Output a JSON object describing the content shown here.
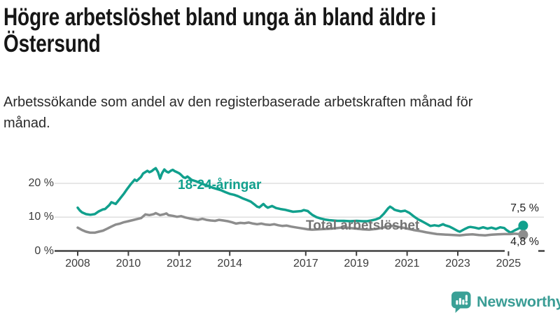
{
  "chart_data": {
    "type": "line",
    "title": "Högre arbetslöshet bland unga än bland äldre i Östersund",
    "subtitle": "Arbetssökande som andel av den registerbaserade arbetskraften månad för månad.",
    "unit": "%",
    "grid": "horizontal",
    "legend_position": "inline-labels-on-lines",
    "x_range": [
      2008,
      2025.6
    ],
    "y_range": [
      0,
      26
    ],
    "x_ticks": [
      2008,
      2010,
      2012,
      2014,
      2017,
      2019,
      2021,
      2023,
      2025
    ],
    "y_ticks": [
      {
        "value": 0,
        "label": "0 %"
      },
      {
        "value": 10,
        "label": "10 %"
      },
      {
        "value": 20,
        "label": "20 %"
      }
    ],
    "series": [
      {
        "name": "18-24-åringar",
        "color": "#11a08d",
        "end_value_label": "7,5 %",
        "points": [
          [
            2008.0,
            12.8
          ],
          [
            2008.08,
            12.0
          ],
          [
            2008.17,
            11.4
          ],
          [
            2008.33,
            10.9
          ],
          [
            2008.5,
            10.7
          ],
          [
            2008.67,
            10.9
          ],
          [
            2008.83,
            11.7
          ],
          [
            2009.0,
            12.3
          ],
          [
            2009.08,
            12.4
          ],
          [
            2009.25,
            13.6
          ],
          [
            2009.33,
            14.4
          ],
          [
            2009.5,
            13.9
          ],
          [
            2009.67,
            15.5
          ],
          [
            2009.83,
            17.0
          ],
          [
            2009.92,
            18.0
          ],
          [
            2010.08,
            19.6
          ],
          [
            2010.25,
            21.1
          ],
          [
            2010.33,
            20.7
          ],
          [
            2010.5,
            21.9
          ],
          [
            2010.58,
            22.9
          ],
          [
            2010.75,
            23.7
          ],
          [
            2010.83,
            23.3
          ],
          [
            2010.92,
            23.6
          ],
          [
            2011.0,
            24.1
          ],
          [
            2011.08,
            24.5
          ],
          [
            2011.17,
            23.3
          ],
          [
            2011.25,
            21.4
          ],
          [
            2011.33,
            23.0
          ],
          [
            2011.42,
            24.1
          ],
          [
            2011.5,
            23.5
          ],
          [
            2011.58,
            23.2
          ],
          [
            2011.67,
            23.7
          ],
          [
            2011.75,
            24.0
          ],
          [
            2011.83,
            23.6
          ],
          [
            2011.92,
            23.3
          ],
          [
            2012.0,
            23.0
          ],
          [
            2012.08,
            22.5
          ],
          [
            2012.17,
            21.8
          ],
          [
            2012.25,
            21.6
          ],
          [
            2012.33,
            22.0
          ],
          [
            2012.42,
            21.5
          ],
          [
            2012.5,
            21.0
          ],
          [
            2012.67,
            20.6
          ],
          [
            2012.83,
            20.1
          ],
          [
            2013.0,
            19.6
          ],
          [
            2013.17,
            19.2
          ],
          [
            2013.33,
            18.7
          ],
          [
            2013.5,
            18.3
          ],
          [
            2013.67,
            17.9
          ],
          [
            2013.83,
            17.4
          ],
          [
            2014.0,
            16.9
          ],
          [
            2014.17,
            16.6
          ],
          [
            2014.33,
            16.2
          ],
          [
            2014.5,
            15.6
          ],
          [
            2014.67,
            15.1
          ],
          [
            2014.83,
            14.6
          ],
          [
            2015.0,
            13.6
          ],
          [
            2015.08,
            13.1
          ],
          [
            2015.17,
            12.9
          ],
          [
            2015.33,
            13.9
          ],
          [
            2015.42,
            13.2
          ],
          [
            2015.5,
            12.8
          ],
          [
            2015.67,
            13.3
          ],
          [
            2015.83,
            12.7
          ],
          [
            2016.0,
            12.4
          ],
          [
            2016.17,
            12.2
          ],
          [
            2016.33,
            11.9
          ],
          [
            2016.5,
            11.6
          ],
          [
            2016.67,
            11.7
          ],
          [
            2016.83,
            11.8
          ],
          [
            2016.92,
            12.1
          ],
          [
            2017.08,
            11.8
          ],
          [
            2017.17,
            11.2
          ],
          [
            2017.25,
            10.7
          ],
          [
            2017.42,
            10.0
          ],
          [
            2017.58,
            9.6
          ],
          [
            2017.75,
            9.3
          ],
          [
            2017.92,
            9.1
          ],
          [
            2018.08,
            9.0
          ],
          [
            2018.25,
            8.9
          ],
          [
            2018.5,
            8.9
          ],
          [
            2018.75,
            8.8
          ],
          [
            2019.0,
            8.9
          ],
          [
            2019.25,
            8.8
          ],
          [
            2019.42,
            8.8
          ],
          [
            2019.58,
            9.0
          ],
          [
            2019.75,
            9.3
          ],
          [
            2019.92,
            9.8
          ],
          [
            2020.08,
            11.0
          ],
          [
            2020.25,
            12.6
          ],
          [
            2020.33,
            13.1
          ],
          [
            2020.42,
            12.7
          ],
          [
            2020.5,
            12.2
          ],
          [
            2020.58,
            12.0
          ],
          [
            2020.75,
            11.7
          ],
          [
            2020.92,
            11.9
          ],
          [
            2021.0,
            11.6
          ],
          [
            2021.08,
            11.3
          ],
          [
            2021.25,
            10.3
          ],
          [
            2021.42,
            9.4
          ],
          [
            2021.58,
            8.8
          ],
          [
            2021.75,
            8.1
          ],
          [
            2021.92,
            7.4
          ],
          [
            2022.08,
            7.6
          ],
          [
            2022.25,
            7.4
          ],
          [
            2022.42,
            7.9
          ],
          [
            2022.5,
            7.6
          ],
          [
            2022.67,
            7.2
          ],
          [
            2022.83,
            6.6
          ],
          [
            2023.0,
            5.9
          ],
          [
            2023.08,
            5.7
          ],
          [
            2023.25,
            6.4
          ],
          [
            2023.42,
            7.0
          ],
          [
            2023.5,
            7.1
          ],
          [
            2023.67,
            6.9
          ],
          [
            2023.83,
            6.6
          ],
          [
            2024.0,
            7.0
          ],
          [
            2024.17,
            6.6
          ],
          [
            2024.33,
            6.9
          ],
          [
            2024.5,
            6.5
          ],
          [
            2024.67,
            7.0
          ],
          [
            2024.83,
            6.8
          ],
          [
            2024.92,
            6.2
          ],
          [
            2025.08,
            5.4
          ],
          [
            2025.25,
            6.1
          ],
          [
            2025.42,
            6.7
          ],
          [
            2025.58,
            7.5
          ]
        ]
      },
      {
        "name": "Total arbetslöshet",
        "color": "#8d8d8d",
        "end_value_label": "4,8 %",
        "points": [
          [
            2008.0,
            6.9
          ],
          [
            2008.17,
            6.2
          ],
          [
            2008.33,
            5.7
          ],
          [
            2008.5,
            5.4
          ],
          [
            2008.67,
            5.4
          ],
          [
            2008.83,
            5.7
          ],
          [
            2009.0,
            6.0
          ],
          [
            2009.17,
            6.6
          ],
          [
            2009.33,
            7.2
          ],
          [
            2009.5,
            7.8
          ],
          [
            2009.67,
            8.1
          ],
          [
            2009.83,
            8.5
          ],
          [
            2010.0,
            8.8
          ],
          [
            2010.17,
            9.1
          ],
          [
            2010.33,
            9.4
          ],
          [
            2010.5,
            9.7
          ],
          [
            2010.58,
            10.2
          ],
          [
            2010.67,
            10.8
          ],
          [
            2010.83,
            10.6
          ],
          [
            2011.0,
            10.9
          ],
          [
            2011.08,
            11.2
          ],
          [
            2011.25,
            10.6
          ],
          [
            2011.42,
            10.9
          ],
          [
            2011.5,
            11.1
          ],
          [
            2011.58,
            10.6
          ],
          [
            2011.75,
            10.4
          ],
          [
            2011.92,
            10.1
          ],
          [
            2012.08,
            10.3
          ],
          [
            2012.25,
            9.9
          ],
          [
            2012.42,
            9.6
          ],
          [
            2012.58,
            9.4
          ],
          [
            2012.75,
            9.2
          ],
          [
            2012.92,
            9.5
          ],
          [
            2013.08,
            9.2
          ],
          [
            2013.25,
            9.0
          ],
          [
            2013.42,
            8.9
          ],
          [
            2013.58,
            9.2
          ],
          [
            2013.75,
            9.0
          ],
          [
            2013.92,
            8.8
          ],
          [
            2014.08,
            8.5
          ],
          [
            2014.25,
            8.1
          ],
          [
            2014.42,
            8.3
          ],
          [
            2014.58,
            8.2
          ],
          [
            2014.75,
            8.4
          ],
          [
            2014.92,
            8.1
          ],
          [
            2015.08,
            7.9
          ],
          [
            2015.25,
            8.1
          ],
          [
            2015.42,
            7.8
          ],
          [
            2015.58,
            7.7
          ],
          [
            2015.75,
            7.9
          ],
          [
            2015.92,
            7.6
          ],
          [
            2016.08,
            7.4
          ],
          [
            2016.25,
            7.5
          ],
          [
            2016.42,
            7.2
          ],
          [
            2016.58,
            7.0
          ],
          [
            2016.75,
            6.8
          ],
          [
            2016.92,
            6.6
          ],
          [
            2017.08,
            6.4
          ],
          [
            2017.25,
            6.3
          ],
          [
            2017.5,
            6.4
          ],
          [
            2017.75,
            6.5
          ],
          [
            2018.0,
            6.6
          ],
          [
            2018.25,
            6.8
          ],
          [
            2018.5,
            7.0
          ],
          [
            2018.75,
            6.8
          ],
          [
            2019.0,
            6.6
          ],
          [
            2019.25,
            6.4
          ],
          [
            2019.5,
            6.3
          ],
          [
            2019.75,
            6.5
          ],
          [
            2020.0,
            6.8
          ],
          [
            2020.25,
            7.3
          ],
          [
            2020.42,
            7.4
          ],
          [
            2020.58,
            7.2
          ],
          [
            2020.83,
            6.9
          ],
          [
            2021.0,
            6.6
          ],
          [
            2021.25,
            6.2
          ],
          [
            2021.5,
            5.9
          ],
          [
            2021.75,
            5.5
          ],
          [
            2022.0,
            5.2
          ],
          [
            2022.17,
            5.0
          ],
          [
            2022.33,
            4.9
          ],
          [
            2022.58,
            4.8
          ],
          [
            2022.83,
            4.7
          ],
          [
            2023.08,
            4.6
          ],
          [
            2023.33,
            4.8
          ],
          [
            2023.58,
            4.9
          ],
          [
            2023.83,
            4.7
          ],
          [
            2024.08,
            4.6
          ],
          [
            2024.33,
            4.8
          ],
          [
            2024.58,
            4.9
          ],
          [
            2024.83,
            5.0
          ],
          [
            2025.08,
            5.0
          ],
          [
            2025.25,
            5.1
          ],
          [
            2025.42,
            5.0
          ],
          [
            2025.58,
            4.8
          ]
        ]
      }
    ],
    "colors": {
      "grid": "#dcdcdc",
      "axis": "#404040",
      "tick_label": "#3c3c3c",
      "end_label_text": "#1f1f1f"
    }
  },
  "branding": {
    "logo_text": "Newsworthy",
    "logo_icon": "bar-chart-speech-bubble-icon",
    "brand_color": "#3a9d95"
  }
}
